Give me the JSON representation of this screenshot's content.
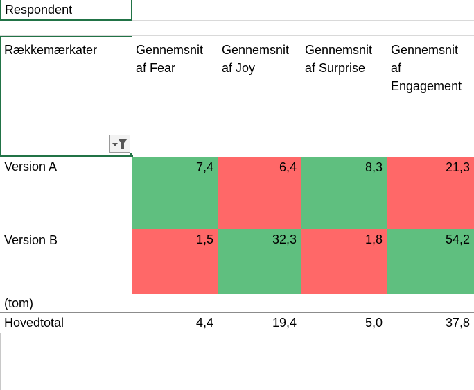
{
  "filter_row": {
    "label": "Respondent"
  },
  "header": {
    "row_labels": "Rækkemærkater",
    "columns": [
      [
        "Gennemsnit",
        "af Fear"
      ],
      [
        "Gennemsnit",
        "af Joy"
      ],
      [
        "Gennemsnit",
        "af Surprise"
      ],
      [
        "Gennemsnit",
        "af",
        "Engagement"
      ]
    ]
  },
  "rows": [
    {
      "label": "Version A",
      "values": [
        "7,4",
        "6,4",
        "8,3",
        "21,3"
      ]
    },
    {
      "label": "Version B",
      "values": [
        "1,5",
        "32,3",
        "1,8",
        "54,2"
      ]
    },
    {
      "label": "(tom)",
      "values": [
        "",
        "",
        "",
        ""
      ]
    }
  ],
  "total": {
    "label": "Hovedtotal",
    "values": [
      "4,4",
      "19,4",
      "5,0",
      "37,8"
    ]
  },
  "colors": {
    "green": "#5fbf7f",
    "red": "#ff6868",
    "selection": "#217346",
    "grid": "#d9d9d9"
  }
}
